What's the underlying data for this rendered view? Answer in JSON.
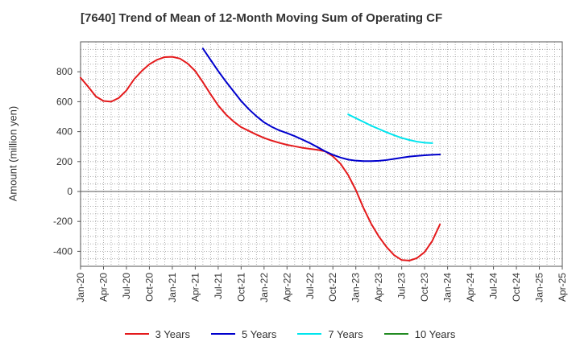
{
  "chart_data": {
    "type": "line",
    "title": "[7640]  Trend of Mean of 12-Month Moving Sum of Operating CF",
    "xlabel": "",
    "ylabel": "Amount (million yen)",
    "ylim": [
      -500,
      1000
    ],
    "yticks": [
      800,
      600,
      400,
      200,
      0,
      -200,
      -400
    ],
    "x_categories": [
      "Jan-20",
      "Apr-20",
      "Jul-20",
      "Oct-20",
      "Jan-21",
      "Apr-21",
      "Jul-21",
      "Oct-21",
      "Jan-22",
      "Apr-22",
      "Jul-22",
      "Oct-22",
      "Jan-23",
      "Apr-23",
      "Jul-23",
      "Oct-23",
      "Jan-24",
      "Apr-24",
      "Jul-24",
      "Oct-24",
      "Jan-25",
      "Apr-25"
    ],
    "grid": true,
    "series": [
      {
        "name": "3 Years",
        "color": "#e41a1c",
        "points": [
          [
            0,
            760
          ],
          [
            1,
            700
          ],
          [
            2,
            635
          ],
          [
            3,
            605
          ],
          [
            4,
            600
          ],
          [
            5,
            625
          ],
          [
            6,
            675
          ],
          [
            7,
            750
          ],
          [
            8,
            805
          ],
          [
            9,
            850
          ],
          [
            10,
            880
          ],
          [
            11,
            898
          ],
          [
            12,
            900
          ],
          [
            13,
            888
          ],
          [
            14,
            855
          ],
          [
            15,
            805
          ],
          [
            16,
            730
          ],
          [
            17,
            650
          ],
          [
            18,
            575
          ],
          [
            19,
            515
          ],
          [
            20,
            468
          ],
          [
            21,
            430
          ],
          [
            22,
            405
          ],
          [
            23,
            380
          ],
          [
            24,
            358
          ],
          [
            25,
            340
          ],
          [
            26,
            325
          ],
          [
            27,
            312
          ],
          [
            28,
            302
          ],
          [
            29,
            292
          ],
          [
            30,
            285
          ],
          [
            31,
            278
          ],
          [
            32,
            268
          ],
          [
            33,
            235
          ],
          [
            34,
            185
          ],
          [
            35,
            110
          ],
          [
            36,
            10
          ],
          [
            37,
            -110
          ],
          [
            38,
            -215
          ],
          [
            39,
            -300
          ],
          [
            40,
            -370
          ],
          [
            41,
            -425
          ],
          [
            42,
            -458
          ],
          [
            43,
            -462
          ],
          [
            44,
            -445
          ],
          [
            45,
            -405
          ],
          [
            46,
            -330
          ],
          [
            47,
            -220
          ]
        ]
      },
      {
        "name": "5 Years",
        "color": "#0000cd",
        "points": [
          [
            16,
            955
          ],
          [
            17,
            880
          ],
          [
            18,
            805
          ],
          [
            19,
            735
          ],
          [
            20,
            670
          ],
          [
            21,
            605
          ],
          [
            22,
            550
          ],
          [
            23,
            503
          ],
          [
            24,
            462
          ],
          [
            25,
            432
          ],
          [
            26,
            408
          ],
          [
            27,
            390
          ],
          [
            28,
            370
          ],
          [
            29,
            347
          ],
          [
            30,
            323
          ],
          [
            31,
            296
          ],
          [
            32,
            268
          ],
          [
            33,
            245
          ],
          [
            34,
            227
          ],
          [
            35,
            213
          ],
          [
            36,
            206
          ],
          [
            37,
            203
          ],
          [
            38,
            203
          ],
          [
            39,
            205
          ],
          [
            40,
            210
          ],
          [
            41,
            218
          ],
          [
            42,
            226
          ],
          [
            43,
            233
          ],
          [
            44,
            238
          ],
          [
            45,
            242
          ],
          [
            46,
            245
          ],
          [
            47,
            247
          ]
        ]
      },
      {
        "name": "7 Years",
        "color": "#00e5ee",
        "points": [
          [
            35,
            515
          ],
          [
            36,
            490
          ],
          [
            37,
            465
          ],
          [
            38,
            440
          ],
          [
            39,
            418
          ],
          [
            40,
            396
          ],
          [
            41,
            376
          ],
          [
            42,
            358
          ],
          [
            43,
            344
          ],
          [
            44,
            333
          ],
          [
            45,
            326
          ],
          [
            46,
            323
          ]
        ]
      },
      {
        "name": "10 Years",
        "color": "#228b22",
        "points": []
      }
    ]
  }
}
